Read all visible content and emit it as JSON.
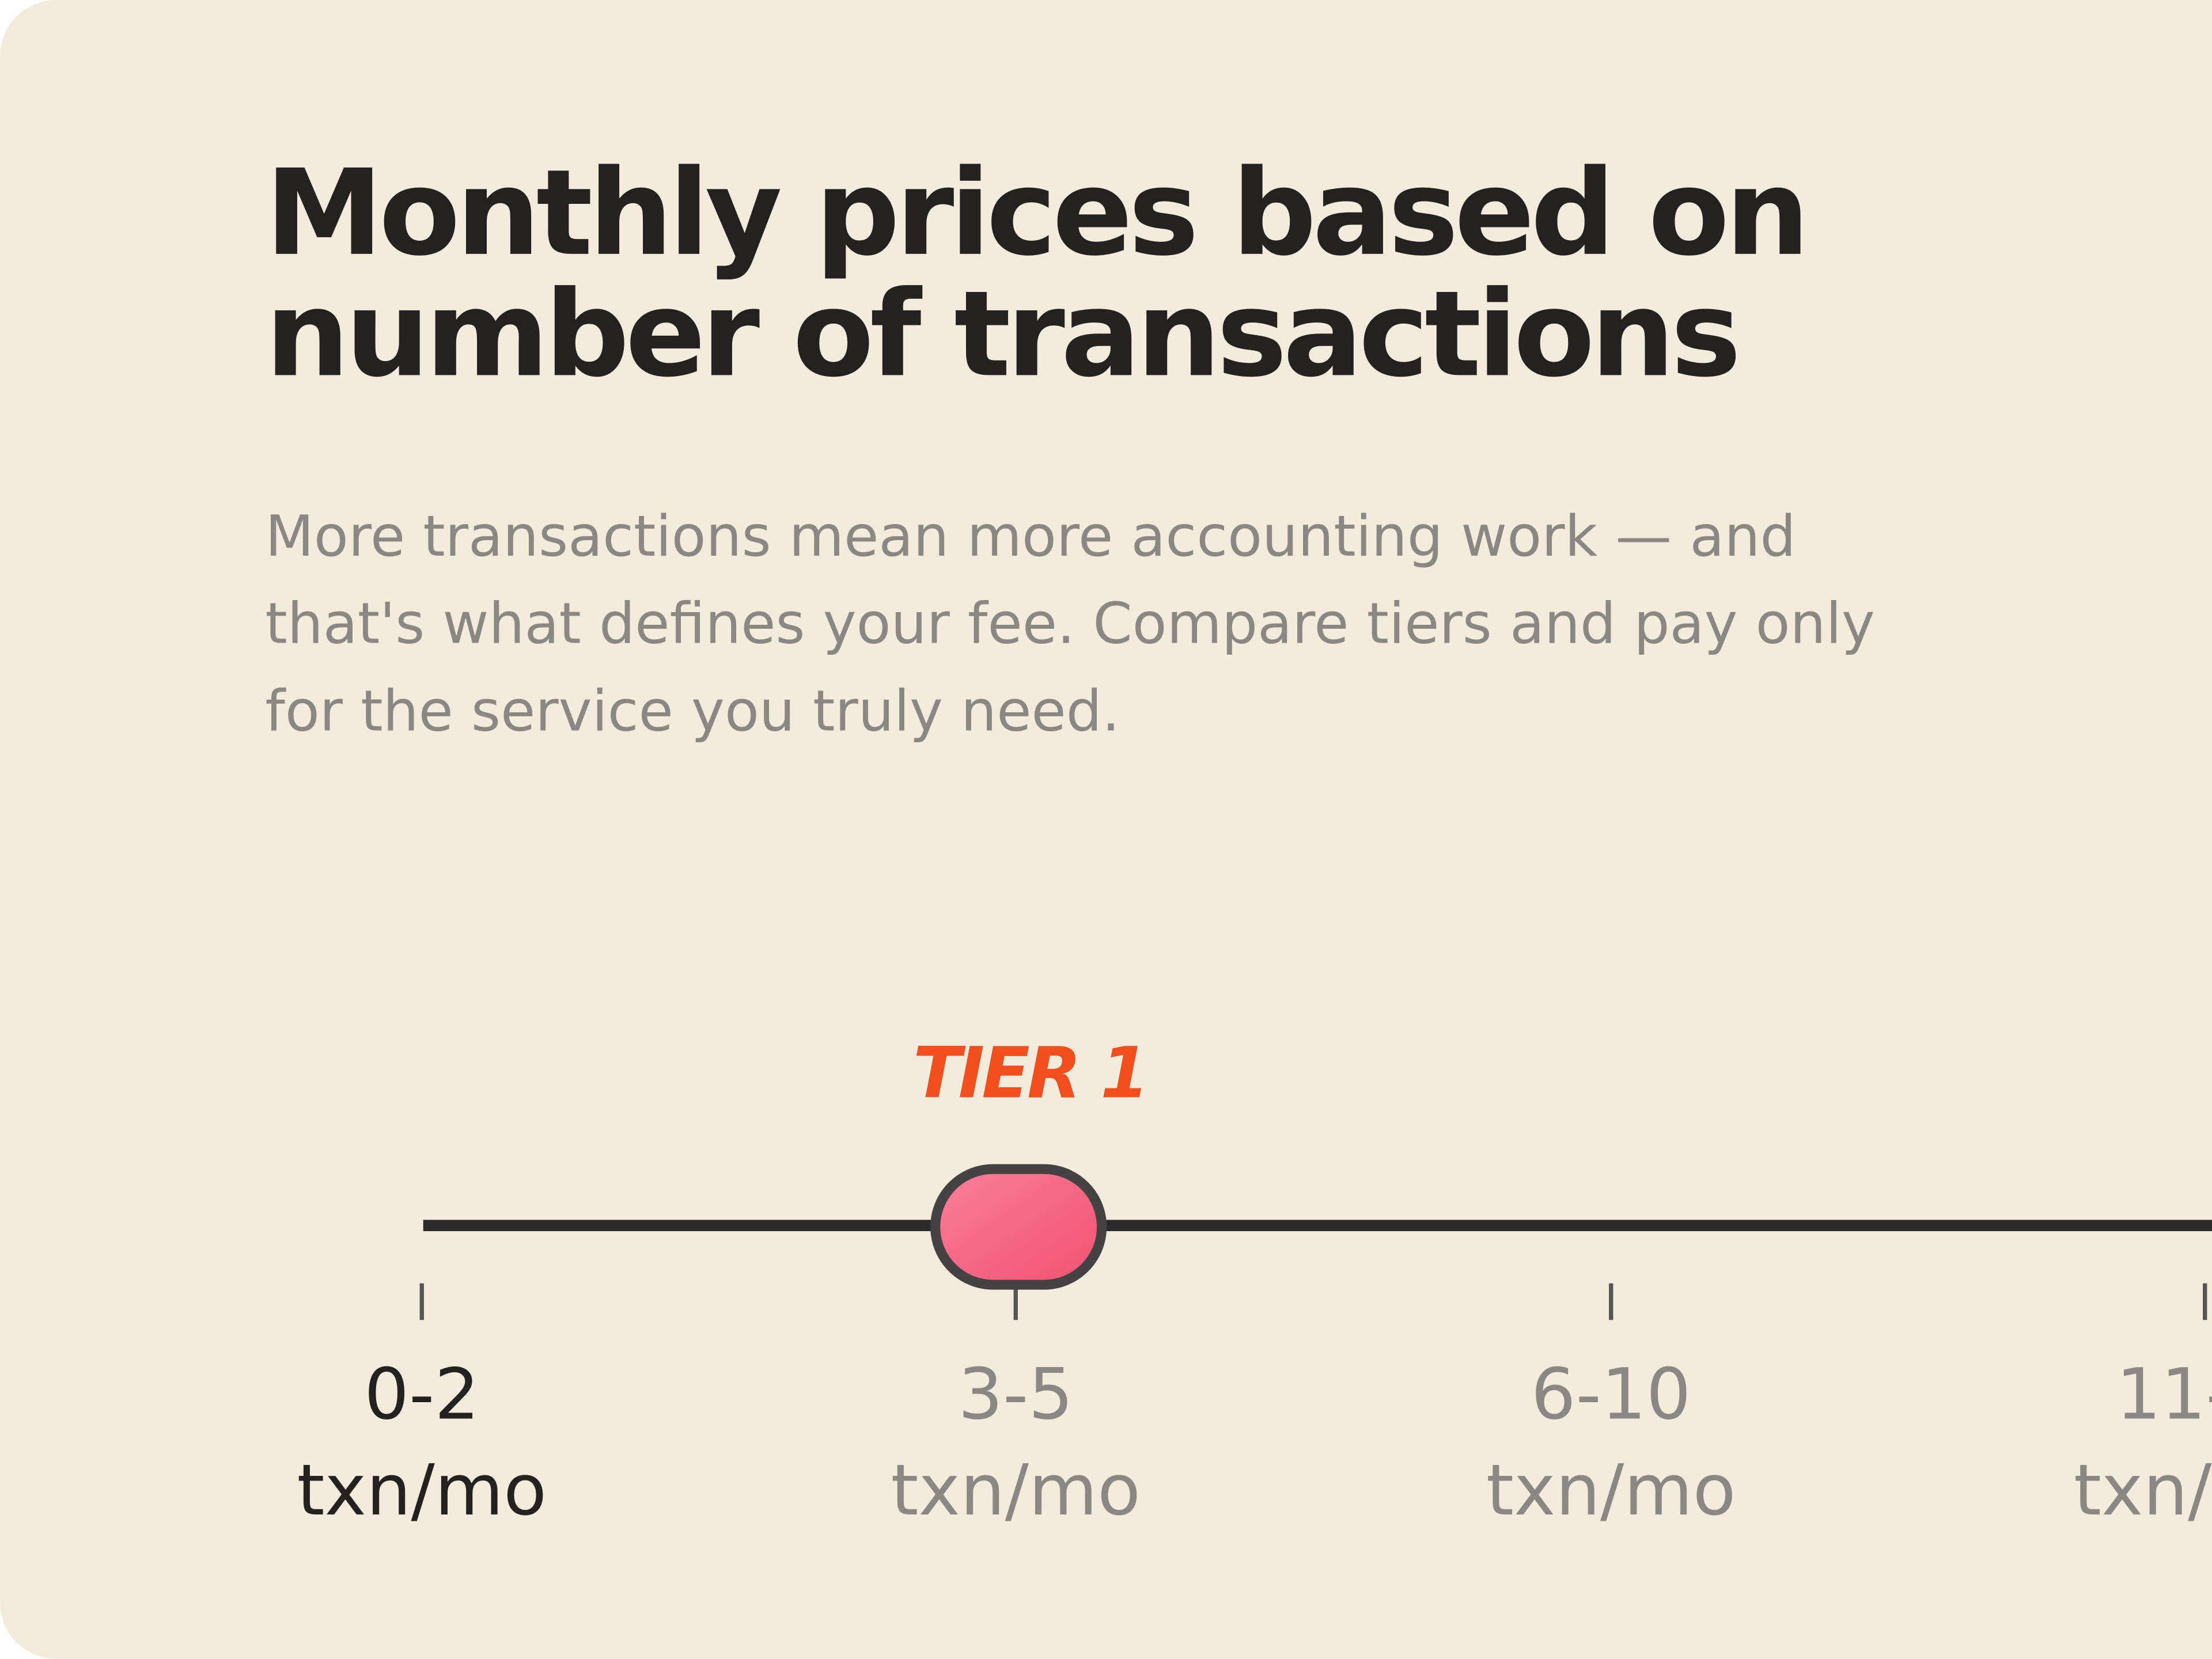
{
  "header": {
    "title_lines": [
      "Monthly prices based on",
      "number of transactions"
    ],
    "subtitle_lines": [
      "More transactions mean more accounting work — and",
      "that's what defines your fee. Compare tiers and pay only",
      "for the service you truly need."
    ]
  },
  "slider": {
    "badge": "TIER 1",
    "stops": [
      {
        "range": "0-2",
        "unit": "txn/mo",
        "color": "#232221"
      },
      {
        "range": "3-5",
        "unit": "txn/mo",
        "color": "#8b8783"
      },
      {
        "range": "6-10",
        "unit": "txn/mo",
        "color": "#8b8783"
      },
      {
        "range": "11-",
        "unit": "txn/",
        "color": "#8b8783"
      }
    ]
  }
}
